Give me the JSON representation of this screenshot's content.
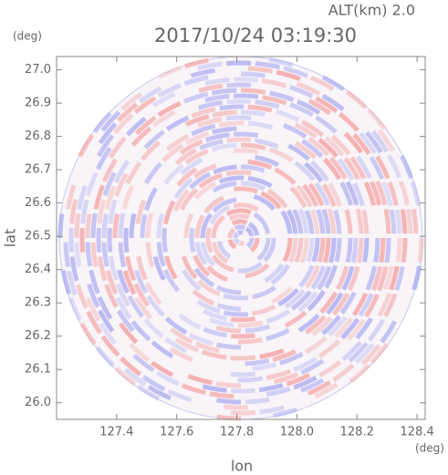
{
  "chart_data": {
    "type": "radar-ppi",
    "title": "2017/10/24 03:19:30",
    "subtitle": "ALT(km) 2.0",
    "x_label": "lon",
    "y_label": "lat",
    "x_unit": "(deg)",
    "y_unit": "(deg)",
    "xlim": [
      127.2,
      128.427
    ],
    "ylim": [
      25.95,
      27.04
    ],
    "xticks": [
      127.4,
      127.6,
      127.8,
      {
        "value": 128.0,
        "label": "128.0"
      },
      128.2,
      128.4
    ],
    "yticks": [
      {
        "value": 26.0,
        "label": "26.0"
      },
      26.1,
      26.2,
      26.3,
      26.4,
      26.5,
      26.6,
      26.7,
      26.8,
      26.9,
      {
        "value": 27.0,
        "label": "27.0"
      }
    ],
    "colors": [
      "#f4a9a9",
      "#b3b3f2"
    ]
  }
}
